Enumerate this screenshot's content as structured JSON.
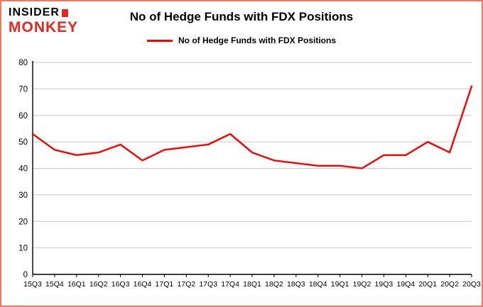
{
  "logo": {
    "line1": "INSIDER",
    "line2": "MONKEY"
  },
  "header": {
    "title": "No of Hedge Funds with FDX Positions"
  },
  "legend": {
    "label": "No of Hedge Funds with FDX Positions"
  },
  "colors": {
    "accent": "#e8251f",
    "series": "#fe0000",
    "grid": "#c6c6c6",
    "axis": "#000000",
    "border": "#f4765d"
  },
  "chart_data": {
    "type": "line",
    "title": "No of Hedge Funds with FDX Positions",
    "categories": [
      "15Q3",
      "15Q4",
      "16Q1",
      "16Q2",
      "16Q3",
      "16Q4",
      "17Q1",
      "17Q2",
      "17Q3",
      "17Q4",
      "18Q1",
      "18Q2",
      "18Q3",
      "18Q4",
      "19Q1",
      "19Q2",
      "19Q3",
      "19Q4",
      "20Q1",
      "20Q2",
      "20Q3"
    ],
    "series": [
      {
        "name": "No of Hedge Funds with FDX Positions",
        "color": "#fe0000",
        "values": [
          53,
          47,
          45,
          46,
          49,
          43,
          47,
          48,
          49,
          53,
          46,
          43,
          42,
          41,
          41,
          40,
          45,
          45,
          50,
          46,
          71
        ]
      }
    ],
    "xlabel": "",
    "ylabel": "",
    "ylim": [
      0,
      80
    ],
    "ytick_step": 10,
    "grid": true,
    "legend_position": "top"
  }
}
